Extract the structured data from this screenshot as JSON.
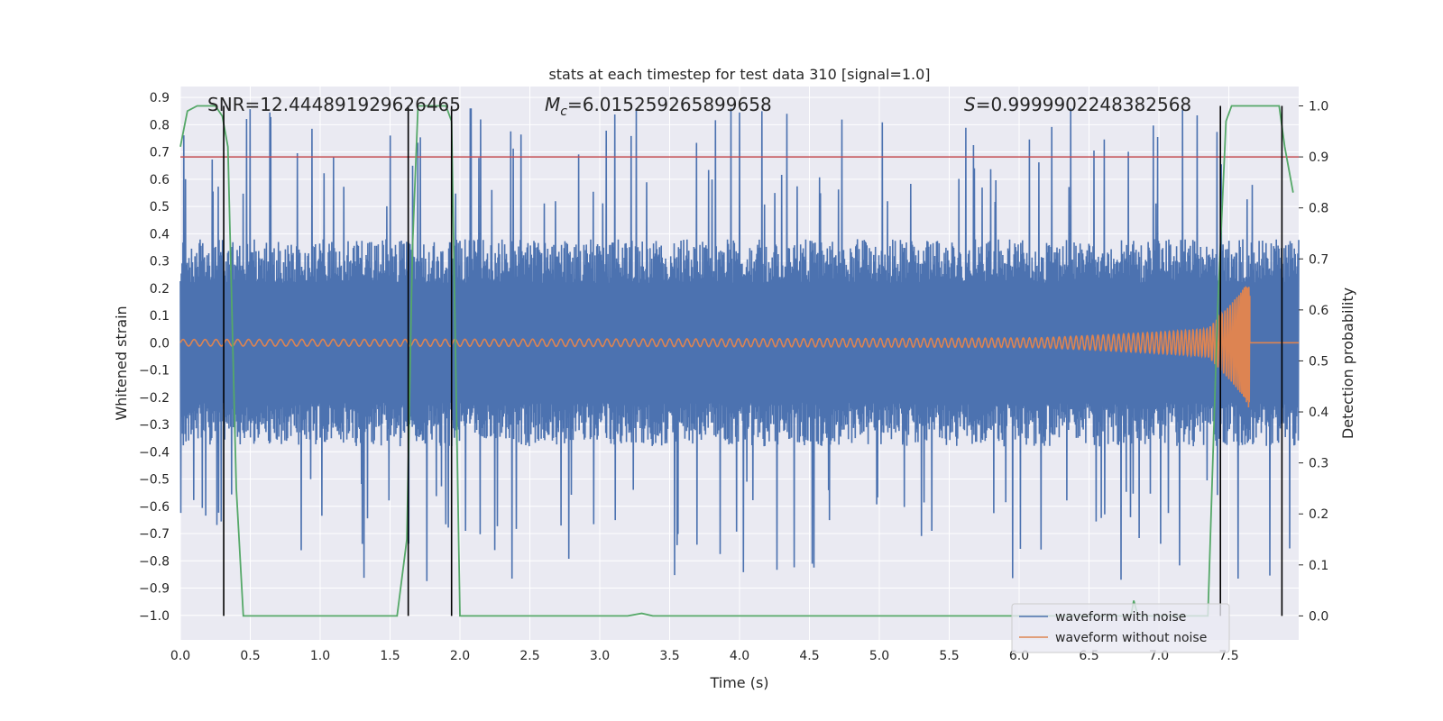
{
  "chart_data": {
    "type": "line",
    "title": "stats at each timestep for test data 310 [signal=1.0]",
    "xlabel": "Time (s)",
    "ylabel": "Whitened strain",
    "y2label": "Detection probability",
    "xlim": [
      0.0,
      8.0
    ],
    "ylim": [
      -1.09,
      0.94
    ],
    "y2lim": [
      -0.047,
      1.038
    ],
    "grid": true,
    "legend_position": "bottom-right",
    "x_ticks": [
      0.0,
      0.5,
      1.0,
      1.5,
      2.0,
      2.5,
      3.0,
      3.5,
      4.0,
      4.5,
      5.0,
      5.5,
      6.0,
      6.5,
      7.0,
      7.5
    ],
    "x_tick_labels": [
      "0.0",
      "0.5",
      "1.0",
      "1.5",
      "2.0",
      "2.5",
      "3.0",
      "3.5",
      "4.0",
      "4.5",
      "5.0",
      "5.5",
      "6.0",
      "6.5",
      "7.0",
      "7.5"
    ],
    "y_ticks": [
      0.9,
      0.8,
      0.7,
      0.6,
      0.5,
      0.4,
      0.3,
      0.2,
      0.1,
      0.0,
      -0.1,
      -0.2,
      -0.3,
      -0.4,
      -0.5,
      -0.6,
      -0.7,
      -0.8,
      -0.9,
      -1.0
    ],
    "y_tick_labels": [
      "0.9",
      "0.8",
      "0.7",
      "0.6",
      "0.5",
      "0.4",
      "0.3",
      "0.2",
      "0.1",
      "0.0",
      "−0.1",
      "−0.2",
      "−0.3",
      "−0.4",
      "−0.5",
      "−0.6",
      "−0.7",
      "−0.8",
      "−0.9",
      "−1.0"
    ],
    "y2_ticks": [
      1.0,
      0.9,
      0.8,
      0.7,
      0.6,
      0.5,
      0.4,
      0.3,
      0.2,
      0.1,
      0.0
    ],
    "y2_tick_labels": [
      "1.0",
      "0.9",
      "0.8",
      "0.7",
      "0.6",
      "0.5",
      "0.4",
      "0.3",
      "0.2",
      "0.1",
      "0.0"
    ],
    "annotations": {
      "snr": "SNR=12.444891929626465",
      "mc_symbol": "M",
      "mc_subscript": "c",
      "mc_value": "=6.015259265899658",
      "s_symbol": "S",
      "s_value": "=0.9999902248382568"
    },
    "threshold": {
      "y2": 0.9,
      "color": "#c44e52"
    },
    "vertical_lines": [
      0.31,
      1.63,
      1.94,
      7.44,
      7.88
    ],
    "series": [
      {
        "name": "waveform with noise",
        "color": "#4c72b0",
        "kind": "noise",
        "axis": "left",
        "approx_envelope": [
          -1.0,
          0.86
        ]
      },
      {
        "name": "waveform without noise",
        "color": "#dd8452",
        "kind": "chirp",
        "axis": "left",
        "merger_time": 7.65,
        "merger_peak": 0.28,
        "merger_trough": -0.33
      },
      {
        "name": "",
        "color": "#55a868",
        "kind": "probability",
        "axis": "right",
        "x": [
          0.0,
          0.05,
          0.12,
          0.25,
          0.3,
          0.34,
          0.4,
          0.45,
          0.5,
          1.0,
          1.55,
          1.62,
          1.66,
          1.7,
          1.74,
          1.8,
          1.9,
          1.94,
          2.0,
          2.5,
          3.0,
          3.2,
          3.3,
          3.38,
          3.5,
          5.0,
          6.0,
          6.8,
          6.82,
          6.85,
          7.0,
          7.35,
          7.42,
          7.48,
          7.52,
          7.6,
          7.8,
          7.86,
          7.9,
          7.96
        ],
        "y": [
          0.92,
          0.99,
          1.0,
          1.0,
          0.98,
          0.92,
          0.25,
          0.0,
          0.0,
          0.0,
          0.0,
          0.15,
          0.72,
          1.0,
          1.0,
          1.0,
          1.0,
          0.97,
          0.0,
          0.0,
          0.0,
          0.0,
          0.005,
          0.0,
          0.0,
          0.0,
          0.0,
          0.0,
          0.03,
          0.0,
          0.0,
          0.0,
          0.6,
          0.97,
          1.0,
          1.0,
          1.0,
          1.0,
          0.92,
          0.83
        ]
      }
    ]
  }
}
